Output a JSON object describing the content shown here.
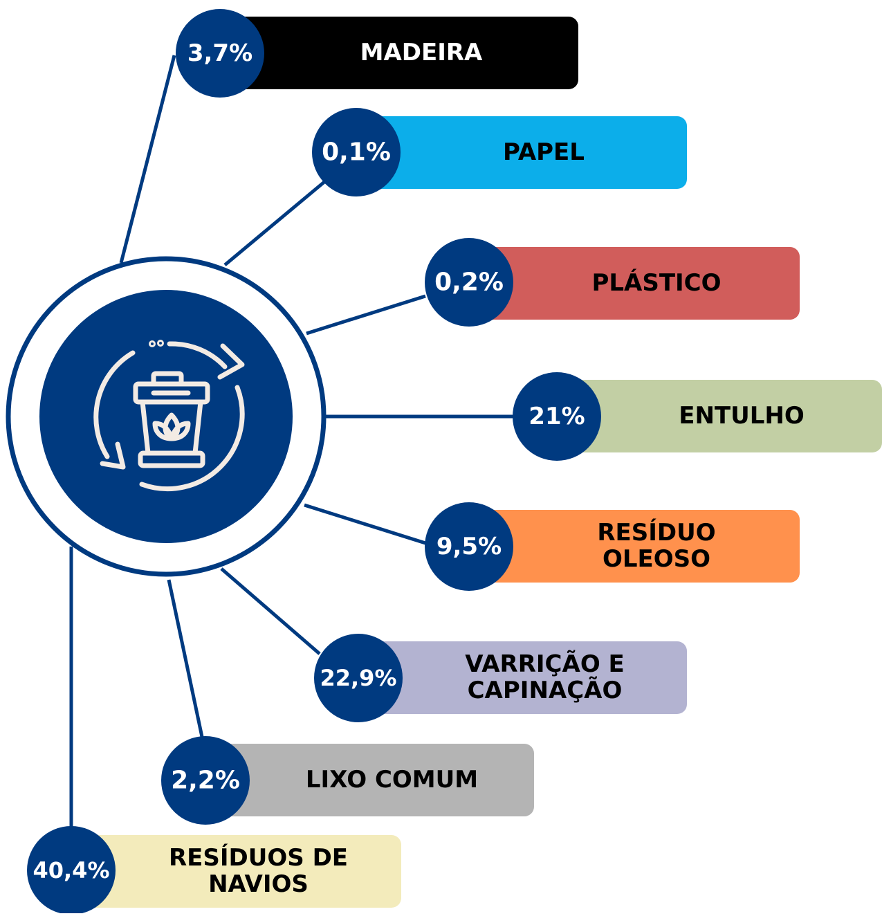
{
  "items": [
    {
      "percent": "3,7%",
      "label": [
        "MADEIRA"
      ],
      "color": "#000000",
      "text_color": "#ffffff"
    },
    {
      "percent": "0,1%",
      "label": [
        "PAPEL"
      ],
      "color": "#0caeea",
      "text_color": "#000000"
    },
    {
      "percent": "0,2%",
      "label": [
        "PLÁSTICO"
      ],
      "color": "#d15d5b",
      "text_color": "#000000"
    },
    {
      "percent": "21%",
      "label": [
        "ENTULHO"
      ],
      "color": "#c2cfa4",
      "text_color": "#000000"
    },
    {
      "percent": "9,5%",
      "label": [
        "RESÍDUO",
        "OLEOSO"
      ],
      "color": "#ff914d",
      "text_color": "#000000"
    },
    {
      "percent": "22,9%",
      "label": [
        "VARRIÇÃO E",
        "CAPINAÇÃO"
      ],
      "color": "#b3b3d1",
      "text_color": "#000000"
    },
    {
      "percent": "2,2%",
      "label": [
        "LIXO COMUM"
      ],
      "color": "#b4b4b4",
      "text_color": "#000000"
    },
    {
      "percent": "40,4%",
      "label": [
        "RESÍDUOS DE",
        "NAVIOS"
      ],
      "color": "#f3ebbb",
      "text_color": "#000000"
    }
  ]
}
